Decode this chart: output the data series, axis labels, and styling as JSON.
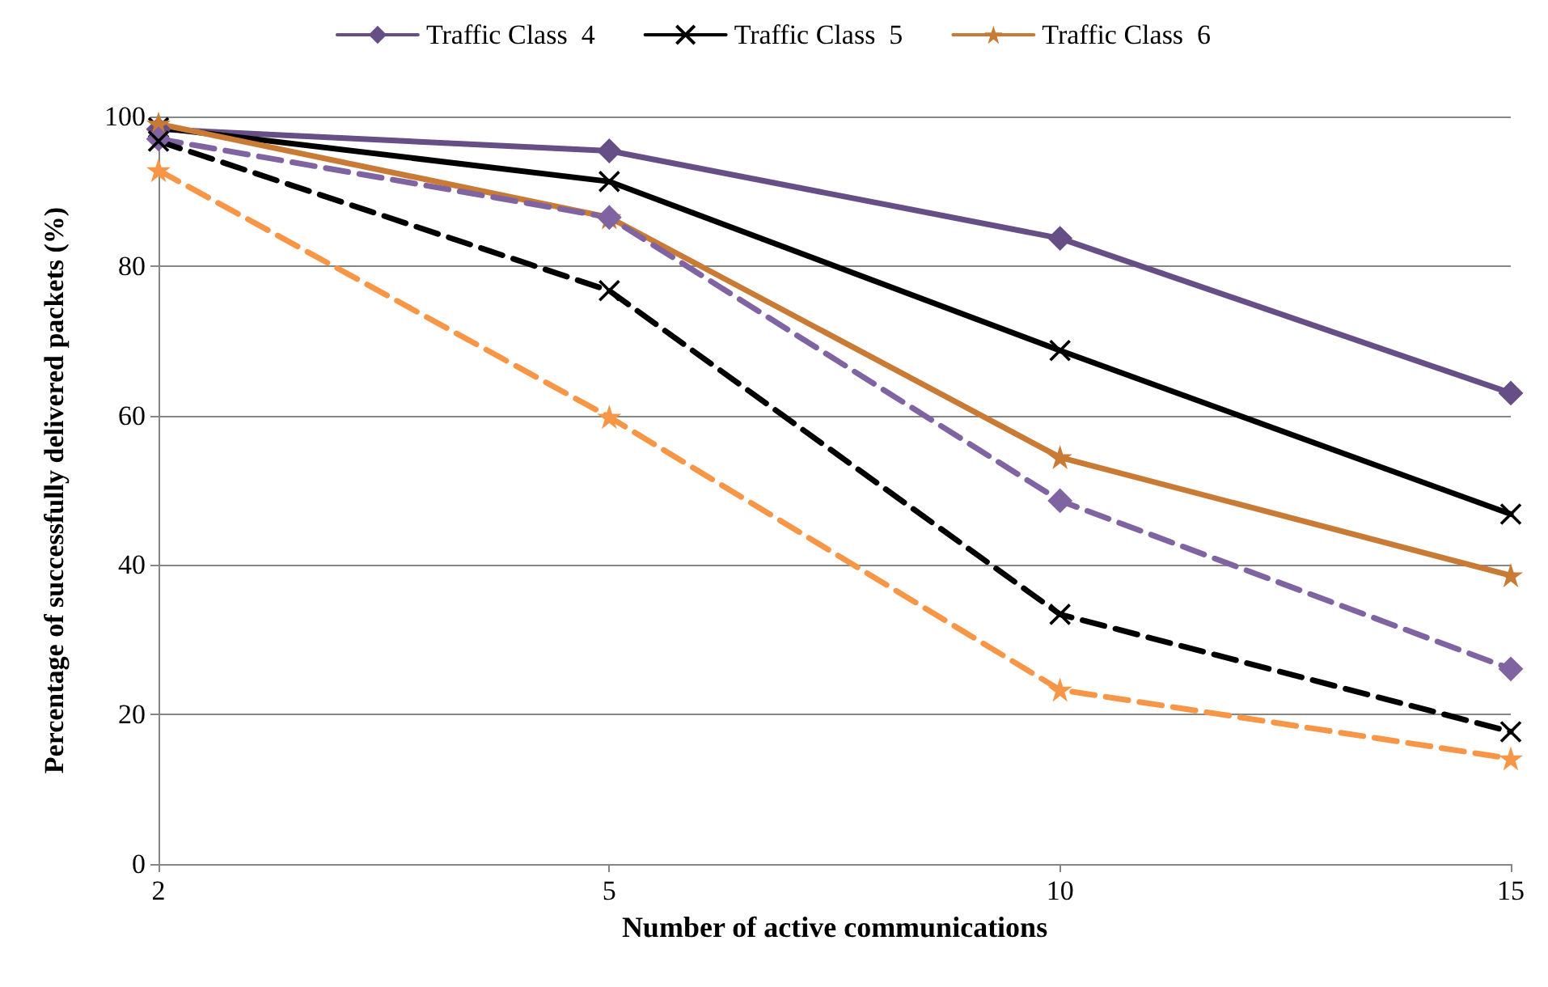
{
  "chart_data": {
    "type": "line",
    "xlabel": "Number of active communications",
    "ylabel": "Percentage of successfully delivered packets (%)",
    "categories": [
      "2",
      "5",
      "10",
      "15"
    ],
    "ylim": [
      0,
      100
    ],
    "yticks": [
      0,
      20,
      40,
      60,
      80,
      100
    ],
    "grid": "y",
    "legend": "top",
    "series": [
      {
        "name": "Traffic Class  4",
        "color": "#664e86",
        "marker": "diamond",
        "line_style": "solid",
        "values": [
          98.3,
          95.4,
          83.7,
          63.0
        ]
      },
      {
        "name": "Traffic Class  5",
        "color": "#000000",
        "marker": "cross",
        "line_style": "solid",
        "values": [
          98.5,
          91.3,
          68.7,
          46.8
        ]
      },
      {
        "name": "Traffic Class  6",
        "color": "#c97a34",
        "marker": "star",
        "line_style": "solid",
        "values": [
          99.0,
          86.5,
          54.4,
          38.6
        ]
      },
      {
        "color": "#8064a2",
        "marker": "diamond",
        "line_style": "dashed",
        "values": [
          97.0,
          86.5,
          48.6,
          26.1
        ]
      },
      {
        "color": "#000000",
        "marker": "cross",
        "line_style": "dashed",
        "values": [
          96.7,
          76.7,
          33.4,
          17.7
        ]
      },
      {
        "color": "#f79646",
        "marker": "star",
        "line_style": "dashed",
        "values": [
          92.8,
          59.8,
          23.3,
          14.1
        ]
      }
    ]
  }
}
